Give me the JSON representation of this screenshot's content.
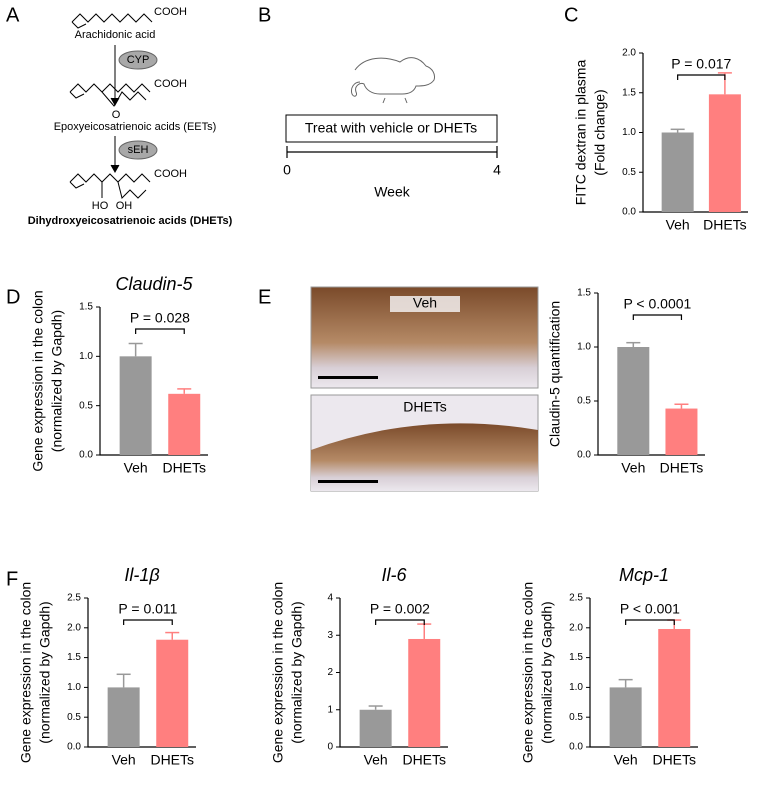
{
  "panel_labels": [
    "A",
    "B",
    "C",
    "D",
    "E",
    "F"
  ],
  "scheme": {
    "compound_1": "Arachidonic acid",
    "compound_2": "Epoxyeicosatrienoic acids (EETs)",
    "compound_3": "Dihydroxyeicosatrienoic acids (DHETs)",
    "group": "COOH",
    "enzyme_1": "CYP",
    "enzyme_2": "sEH",
    "epoxide_o": "O",
    "hydroxyl_1": "HO",
    "hydroxyl_2": "OH"
  },
  "design": {
    "treatment": "Treat with vehicle or DHETs",
    "start": "0",
    "end": "4",
    "axis": "Week"
  },
  "images": [
    "Veh",
    "DHETs"
  ],
  "chart_data": [
    {
      "type": "bar",
      "y_label": [
        "FITC dextran in plasma",
        "(Fold change)"
      ],
      "categories": [
        "Veh",
        "DHETs"
      ],
      "values": [
        1.0,
        1.48
      ],
      "errors": [
        0.04,
        0.27
      ],
      "colors": [
        "#999999",
        "#ff7f7f"
      ],
      "annotation": "P = 0.017",
      "ylim": [
        0,
        2.0
      ],
      "yticks": [
        {
          "value": 0,
          "label": "0.0"
        },
        {
          "value": 0.5,
          "label": "0.5"
        },
        {
          "value": 1.0,
          "label": "1.0"
        },
        {
          "value": 1.5,
          "label": "1.5"
        },
        {
          "value": 2.0,
          "label": "2.0"
        }
      ]
    },
    {
      "type": "bar",
      "title": "Claudin-5",
      "y_label": [
        "Gene expression in the colon",
        "(normalized by Gapdh)"
      ],
      "categories": [
        "Veh",
        "DHETs"
      ],
      "values": [
        1.0,
        0.62
      ],
      "errors": [
        0.13,
        0.05
      ],
      "colors": [
        "#999999",
        "#ff7f7f"
      ],
      "annotation": "P = 0.028",
      "ylim": [
        0,
        1.5
      ],
      "yticks": [
        {
          "value": 0,
          "label": "0.0"
        },
        {
          "value": 0.5,
          "label": "0.5"
        },
        {
          "value": 1.0,
          "label": "1.0"
        },
        {
          "value": 1.5,
          "label": "1.5"
        }
      ]
    },
    {
      "type": "bar",
      "y_label": [
        "Claudin-5 quantification"
      ],
      "categories": [
        "Veh",
        "DHETs"
      ],
      "values": [
        1.0,
        0.43
      ],
      "errors": [
        0.04,
        0.04
      ],
      "colors": [
        "#999999",
        "#ff7f7f"
      ],
      "annotation": "P < 0.0001",
      "ylim": [
        0,
        1.5
      ],
      "yticks": [
        {
          "value": 0,
          "label": "0.0"
        },
        {
          "value": 0.5,
          "label": "0.5"
        },
        {
          "value": 1.0,
          "label": "1.0"
        },
        {
          "value": 1.5,
          "label": "1.5"
        }
      ]
    },
    {
      "type": "bar",
      "title": "Il-1β",
      "y_label": [
        "Gene expression in the colon",
        "(normalized by Gapdh)"
      ],
      "categories": [
        "Veh",
        "DHETs"
      ],
      "values": [
        1.0,
        1.8
      ],
      "errors": [
        0.22,
        0.12
      ],
      "colors": [
        "#999999",
        "#ff7f7f"
      ],
      "annotation": "P = 0.011",
      "ylim": [
        0,
        2.5
      ],
      "yticks": [
        {
          "value": 0,
          "label": "0.0"
        },
        {
          "value": 0.5,
          "label": "0.5"
        },
        {
          "value": 1.0,
          "label": "1.0"
        },
        {
          "value": 1.5,
          "label": "1.5"
        },
        {
          "value": 2.0,
          "label": "2.0"
        },
        {
          "value": 2.5,
          "label": "2.5"
        }
      ]
    },
    {
      "type": "bar",
      "title": "Il-6",
      "y_label": [
        "Gene expression in the colon",
        "(normalized by Gapdh)"
      ],
      "categories": [
        "Veh",
        "DHETs"
      ],
      "values": [
        1.0,
        2.9
      ],
      "errors": [
        0.1,
        0.4
      ],
      "colors": [
        "#999999",
        "#ff7f7f"
      ],
      "annotation": "P = 0.002",
      "ylim": [
        0,
        4
      ],
      "yticks": [
        0,
        1,
        2,
        3,
        4
      ]
    },
    {
      "type": "bar",
      "title": "Mcp-1",
      "y_label": [
        "Gene expression in the colon",
        "(normalized by Gapdh)"
      ],
      "categories": [
        "Veh",
        "DHETs"
      ],
      "values": [
        1.0,
        1.98
      ],
      "errors": [
        0.13,
        0.15
      ],
      "colors": [
        "#999999",
        "#ff7f7f"
      ],
      "annotation": "P < 0.001",
      "ylim": [
        0,
        2.5
      ],
      "yticks": [
        {
          "value": 0,
          "label": "0.0"
        },
        {
          "value": 0.5,
          "label": "0.5"
        },
        {
          "value": 1.0,
          "label": "1.0"
        },
        {
          "value": 1.5,
          "label": "1.5"
        },
        {
          "value": 2.0,
          "label": "2.0"
        },
        {
          "value": 2.5,
          "label": "2.5"
        }
      ]
    }
  ]
}
